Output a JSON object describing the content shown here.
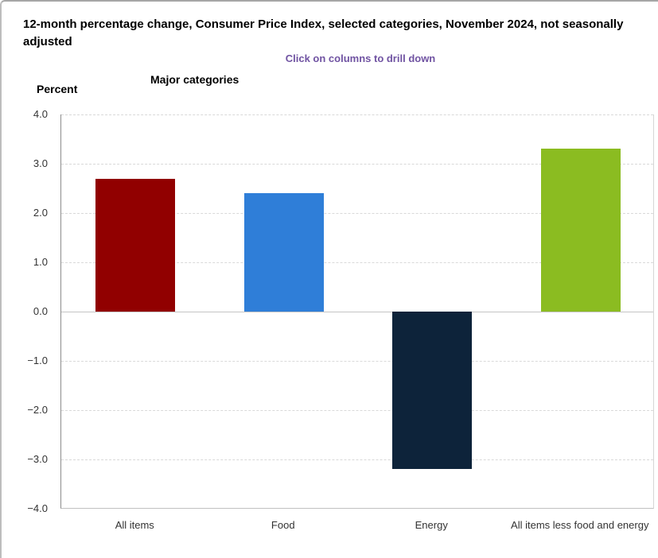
{
  "header": {
    "title": "12-month percentage change, Consumer Price Index, selected categories, November 2024, not seasonally adjusted",
    "subtitle": "Click on columns to drill down",
    "subtitle_color": "#7053a2",
    "group_label": "Major categories",
    "unit_label": "Percent"
  },
  "chart_data": {
    "type": "bar",
    "title": "12-month percentage change, Consumer Price Index, selected categories, November 2024, not seasonally adjusted",
    "subtitle": "Click on columns to drill down",
    "categories": [
      "All items",
      "Food",
      "Energy",
      "All items less food and energy"
    ],
    "values": [
      2.7,
      2.4,
      -3.2,
      3.3
    ],
    "colors": [
      "#910000",
      "#2f7ed8",
      "#0d233a",
      "#8bbc21"
    ],
    "xlabel": "Major categories",
    "ylabel": "Percent",
    "ylim": [
      -4.0,
      4.0
    ],
    "ytick_interval": 1.0,
    "yticks": [
      "4.0",
      "3.0",
      "2.0",
      "1.0",
      "0.0",
      "−1.0",
      "−2.0",
      "−3.0",
      "−4.0"
    ],
    "grid": "horizontal-dashed",
    "legend": "none"
  }
}
